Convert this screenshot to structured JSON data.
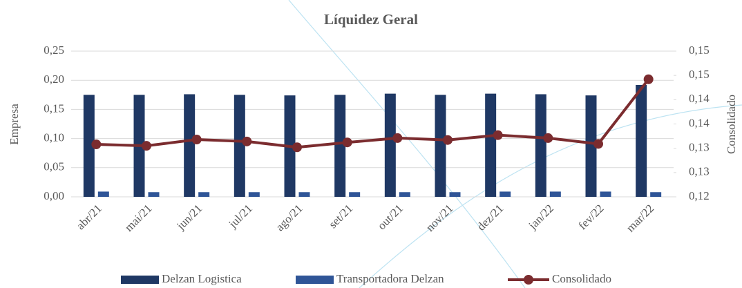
{
  "chart_data": {
    "type": "bar-line",
    "title": "Líquidez Geral",
    "ylabel": "Empresa",
    "y2label": "Consolidado",
    "categories": [
      "abr/21",
      "mai/21",
      "jun/21",
      "jul/21",
      "ago/21",
      "set/21",
      "out/21",
      "nov/21",
      "dez/21",
      "jan/22",
      "fev/22",
      "mar/22"
    ],
    "series": [
      {
        "name": "Delzan Logistica",
        "type": "bar",
        "color": "#1f3864",
        "values": [
          0.175,
          0.175,
          0.176,
          0.175,
          0.174,
          0.175,
          0.177,
          0.175,
          0.177,
          0.176,
          0.174,
          0.192
        ]
      },
      {
        "name": "Transportadora Delzan",
        "type": "bar",
        "color": "#2f5597",
        "values": [
          0.009,
          0.008,
          0.008,
          0.008,
          0.008,
          0.008,
          0.008,
          0.008,
          0.009,
          0.009,
          0.009,
          0.008
        ]
      },
      {
        "name": "Consolidado",
        "type": "line",
        "axis": "y2",
        "color": "#7b2c2f",
        "values": [
          0.1308,
          0.1305,
          0.1318,
          0.1314,
          0.1302,
          0.1312,
          0.1321,
          0.1317,
          0.1327,
          0.1321,
          0.1309,
          0.1442
        ]
      }
    ],
    "ylim": [
      0,
      0.25
    ],
    "yticks": [
      {
        "value": 0,
        "label": "0,00"
      },
      {
        "value": 0.05,
        "label": "0,05"
      },
      {
        "value": 0.1,
        "label": "0,10"
      },
      {
        "value": 0.15,
        "label": "0,15"
      },
      {
        "value": 0.2,
        "label": "0,20"
      },
      {
        "value": 0.25,
        "label": "0,25"
      }
    ],
    "y2lim": [
      0.12,
      0.15
    ],
    "y2ticks": [
      {
        "value": 0.12,
        "label": "0,12"
      },
      {
        "value": 0.125,
        "label": "0,13"
      },
      {
        "value": 0.13,
        "label": "0,13"
      },
      {
        "value": 0.135,
        "label": "0,14"
      },
      {
        "value": 0.14,
        "label": "0,14"
      },
      {
        "value": 0.145,
        "label": "0,15"
      },
      {
        "value": 0.15,
        "label": "0,15"
      }
    ],
    "grid": true,
    "legend": "bottom"
  }
}
